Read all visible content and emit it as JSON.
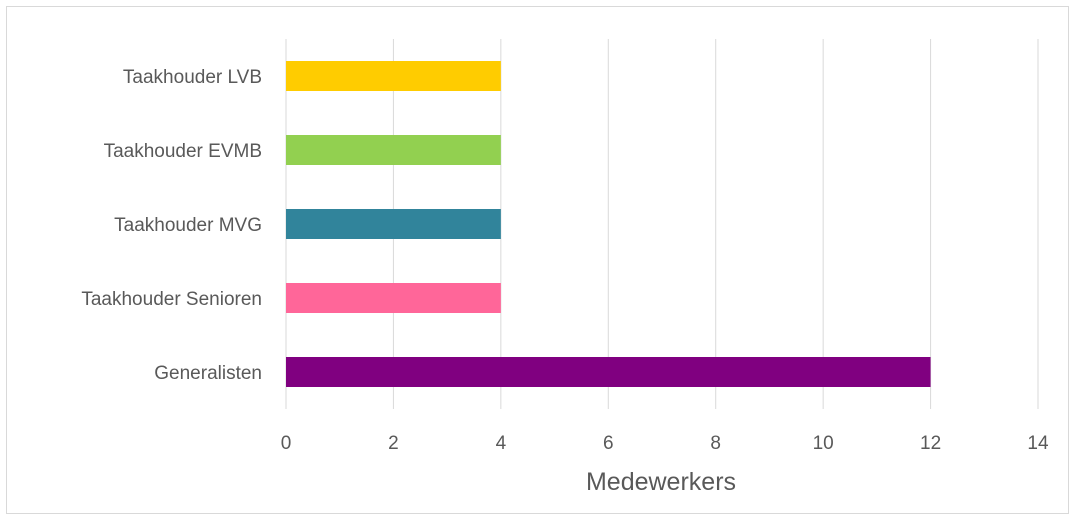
{
  "chart_data": {
    "type": "bar",
    "orientation": "horizontal",
    "categories": [
      "Taakhouder LVB",
      "Taakhouder EVMB",
      "Taakhouder MVG",
      "Taakhouder Senioren",
      "Generalisten"
    ],
    "values": [
      4,
      4,
      4,
      4,
      12
    ],
    "colors": [
      "#FFCC00",
      "#92D050",
      "#31849B",
      "#FF6699",
      "#800080"
    ],
    "xlabel": "Medewerkers",
    "ylabel": "",
    "title": "",
    "xlim": [
      0,
      14
    ],
    "xticks": [
      0,
      2,
      4,
      6,
      8,
      10,
      12,
      14
    ],
    "grid": true,
    "legend": "none"
  }
}
